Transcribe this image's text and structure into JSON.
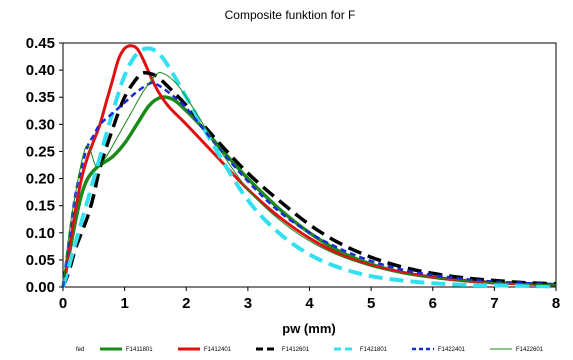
{
  "chart_data": {
    "type": "line",
    "title": "Composite funktion for F",
    "xlabel": "pw (mm)",
    "ylabel": "",
    "xlim": [
      0,
      8
    ],
    "ylim": [
      0,
      0.45
    ],
    "grid": false,
    "x_ticks": [
      "0",
      "1",
      "2",
      "3",
      "4",
      "5",
      "6",
      "7",
      "8"
    ],
    "y_ticks": [
      "0.00",
      "0.05",
      "0.10",
      "0.15",
      "0.20",
      "0.25",
      "0.30",
      "0.35",
      "0.40",
      "0.45"
    ],
    "legend_label": "fed",
    "legend_position": "bottom",
    "series": [
      {
        "name": "F1411801",
        "color": "#1a8a1a",
        "dash": "solid",
        "width": 3.5,
        "x": [
          0,
          0.1,
          0.2,
          0.3,
          0.4,
          0.5,
          0.6,
          0.8,
          1.0,
          1.2,
          1.4,
          1.6,
          1.8,
          2.0,
          2.3,
          2.6,
          3.0,
          3.5,
          4.0,
          4.5,
          5.0,
          5.5,
          6.0,
          6.5,
          7.0,
          7.5,
          8.0
        ],
        "y": [
          0,
          0.06,
          0.12,
          0.17,
          0.2,
          0.215,
          0.225,
          0.24,
          0.265,
          0.3,
          0.335,
          0.35,
          0.345,
          0.325,
          0.29,
          0.25,
          0.2,
          0.145,
          0.1,
          0.065,
          0.042,
          0.027,
          0.018,
          0.012,
          0.008,
          0.006,
          0.004
        ]
      },
      {
        "name": "F1412401",
        "color": "#e01010",
        "dash": "solid",
        "width": 3,
        "x": [
          0,
          0.1,
          0.2,
          0.3,
          0.4,
          0.5,
          0.6,
          0.7,
          0.8,
          0.9,
          1.0,
          1.1,
          1.2,
          1.3,
          1.5,
          1.7,
          2.0,
          2.5,
          3.0,
          3.5,
          4.0,
          4.5,
          5.0,
          5.5,
          6.0,
          6.5,
          7.0,
          8.0
        ],
        "y": [
          0,
          0.07,
          0.14,
          0.2,
          0.24,
          0.27,
          0.3,
          0.34,
          0.38,
          0.42,
          0.44,
          0.445,
          0.44,
          0.42,
          0.37,
          0.335,
          0.3,
          0.24,
          0.18,
          0.13,
          0.09,
          0.06,
          0.04,
          0.027,
          0.018,
          0.012,
          0.008,
          0.004
        ]
      },
      {
        "name": "F1412601",
        "color": "#000000",
        "dash": "longdash",
        "width": 3.5,
        "x": [
          0,
          0.1,
          0.2,
          0.3,
          0.4,
          0.5,
          0.6,
          0.8,
          1.0,
          1.2,
          1.3,
          1.5,
          1.7,
          2.0,
          2.5,
          3.0,
          3.5,
          4.0,
          4.5,
          5.0,
          5.5,
          6.0,
          6.5,
          7.0,
          7.5,
          8.0
        ],
        "y": [
          0,
          0.03,
          0.07,
          0.1,
          0.13,
          0.17,
          0.22,
          0.29,
          0.35,
          0.385,
          0.395,
          0.39,
          0.37,
          0.335,
          0.27,
          0.21,
          0.16,
          0.115,
          0.08,
          0.055,
          0.037,
          0.025,
          0.017,
          0.012,
          0.008,
          0.006
        ]
      },
      {
        "name": "F1421801",
        "color": "#33e0f0",
        "dash": "longdash",
        "width": 4,
        "x": [
          0,
          0.1,
          0.2,
          0.3,
          0.4,
          0.5,
          0.6,
          0.8,
          1.0,
          1.2,
          1.4,
          1.6,
          1.8,
          2.0,
          2.5,
          3.0,
          3.5,
          4.0,
          4.5,
          5.0,
          5.5,
          6.0,
          6.5,
          7.0,
          8.0
        ],
        "y": [
          0,
          0.04,
          0.08,
          0.12,
          0.16,
          0.2,
          0.24,
          0.32,
          0.39,
          0.43,
          0.44,
          0.425,
          0.39,
          0.35,
          0.25,
          0.16,
          0.1,
          0.06,
          0.035,
          0.02,
          0.012,
          0.007,
          0.004,
          0.003,
          0.001
        ]
      },
      {
        "name": "F1422401",
        "color": "#1a2ad8",
        "dash": "dash",
        "width": 2.5,
        "x": [
          0,
          0.1,
          0.2,
          0.3,
          0.4,
          0.5,
          0.6,
          0.8,
          1.0,
          1.2,
          1.4,
          1.5,
          1.7,
          2.0,
          2.5,
          3.0,
          3.5,
          4.0,
          4.5,
          5.0,
          5.5,
          6.0,
          6.5,
          7.0,
          8.0
        ],
        "y": [
          0,
          0.09,
          0.17,
          0.22,
          0.26,
          0.28,
          0.3,
          0.32,
          0.34,
          0.36,
          0.375,
          0.375,
          0.36,
          0.33,
          0.26,
          0.195,
          0.14,
          0.1,
          0.07,
          0.048,
          0.032,
          0.022,
          0.015,
          0.01,
          0.005
        ]
      },
      {
        "name": "F1422601",
        "color": "#1a8a1a",
        "dash": "solid",
        "width": 1,
        "x": [
          0,
          0.1,
          0.2,
          0.3,
          0.38,
          0.45,
          0.55,
          0.7,
          0.9,
          1.1,
          1.3,
          1.5,
          1.6,
          1.8,
          2.0,
          2.5,
          3.0,
          3.5,
          4.0,
          4.5,
          5.0,
          5.5,
          6.0,
          6.5,
          7.0,
          8.0
        ],
        "y": [
          0,
          0.1,
          0.17,
          0.23,
          0.26,
          0.25,
          0.22,
          0.24,
          0.28,
          0.32,
          0.36,
          0.39,
          0.395,
          0.38,
          0.35,
          0.26,
          0.18,
          0.125,
          0.085,
          0.057,
          0.038,
          0.025,
          0.017,
          0.012,
          0.008,
          0.004
        ]
      }
    ]
  }
}
